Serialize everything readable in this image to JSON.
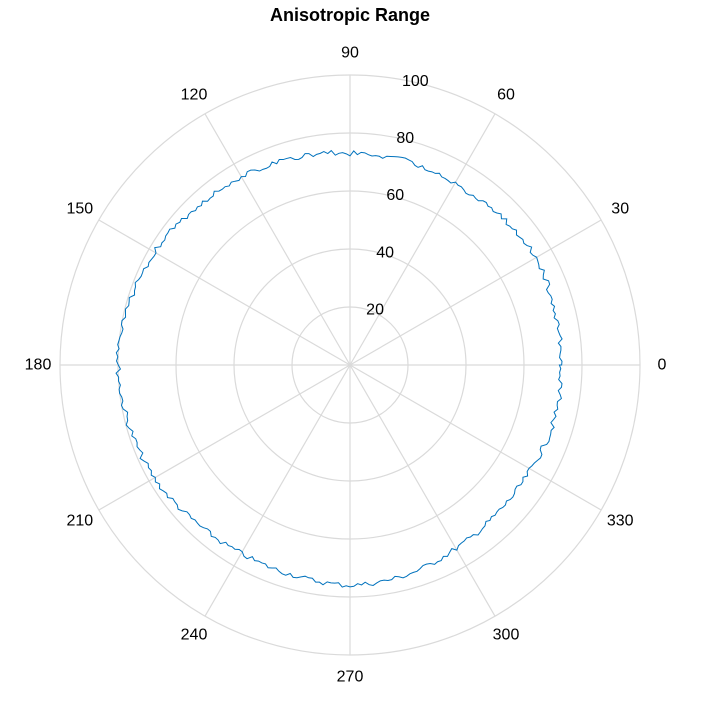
{
  "chart_data": {
    "type": "line",
    "title": "Anisotropic Range",
    "theta_ticks": [
      "0",
      "30",
      "60",
      "90",
      "120",
      "150",
      "180",
      "210",
      "240",
      "270",
      "300",
      "330"
    ],
    "theta_tick_values_deg": [
      0,
      30,
      60,
      90,
      120,
      150,
      180,
      210,
      240,
      270,
      300,
      330
    ],
    "r_ticks": [
      "20",
      "40",
      "60",
      "80",
      "100"
    ],
    "r_tick_values": [
      20,
      40,
      60,
      80,
      100
    ],
    "rlim": [
      0,
      100
    ],
    "grid": true,
    "series": [
      {
        "color": "#0072bd",
        "theta_deg": [
          0,
          15,
          30,
          45,
          60,
          75,
          90,
          105,
          120,
          135,
          150,
          165,
          180,
          195,
          210,
          225,
          240,
          255,
          270,
          285,
          300,
          315,
          330,
          345,
          360
        ],
        "r": [
          73,
          73,
          74,
          73,
          72,
          73,
          73,
          74,
          75,
          76,
          78,
          79,
          80,
          79,
          78,
          76,
          75,
          75,
          76,
          75,
          73,
          72,
          72,
          73,
          73
        ]
      }
    ]
  }
}
